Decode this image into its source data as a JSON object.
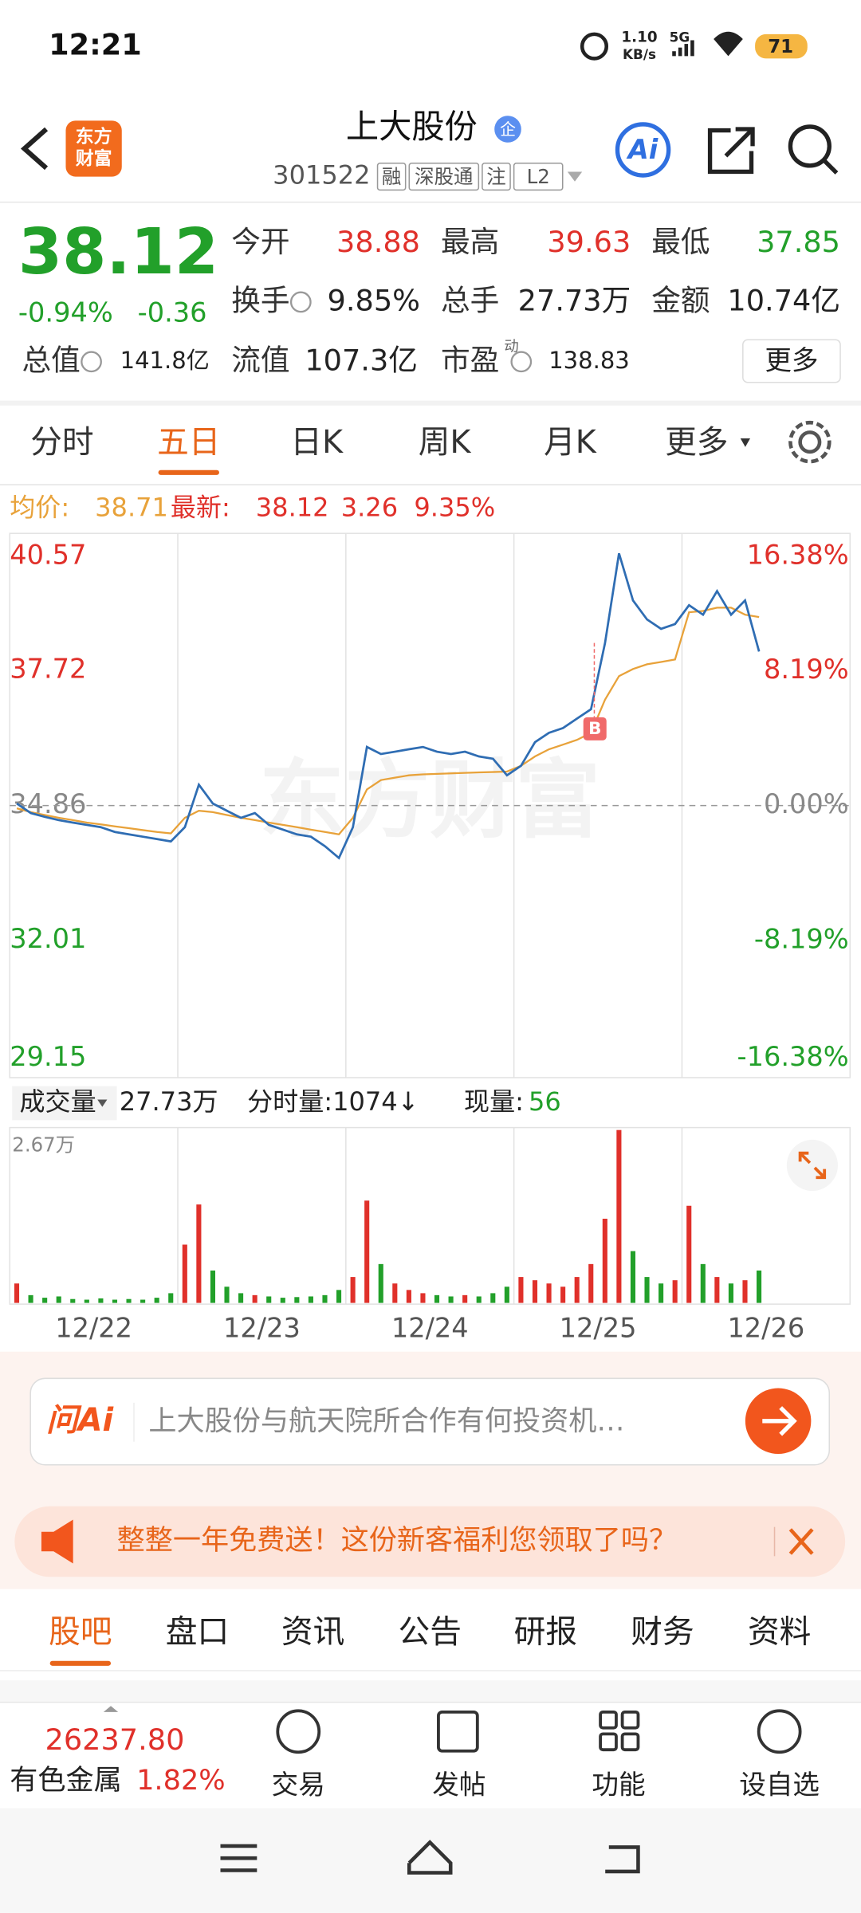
{
  "status_bar": {
    "time": "12:21",
    "speed": "1.10",
    "speed_unit": "KB/s",
    "network": "5G",
    "battery": "71"
  },
  "header": {
    "logo": [
      "东方",
      "财富"
    ],
    "title": "上大股份",
    "badge": "企",
    "code": "301522",
    "tags": [
      "融",
      "深股通",
      "注",
      "L2"
    ],
    "ai": "Ai"
  },
  "quote": {
    "price": "38.12",
    "change_pct": "-0.94%",
    "change": "-0.36",
    "stats": [
      {
        "label": "今开",
        "value": "38.88",
        "color": "#e0302a"
      },
      {
        "label": "最高",
        "value": "39.63",
        "color": "#e0302a"
      },
      {
        "label": "最低",
        "value": "37.85",
        "color": "#22a02a"
      },
      {
        "label": "换手",
        "value": "9.85%",
        "info": true
      },
      {
        "label": "总手",
        "value": "27.73万"
      },
      {
        "label": "金额",
        "value": "10.74亿"
      },
      {
        "label": "总值",
        "value": "141.8亿",
        "info": true
      },
      {
        "label": "流值",
        "value": "107.3亿"
      },
      {
        "label": "市盈",
        "sup": "动",
        "value": "138.83",
        "info": true
      }
    ],
    "more": "更多"
  },
  "tabs": {
    "items": [
      "分时",
      "五日",
      "日K",
      "周K",
      "月K",
      "更多"
    ],
    "active": 1
  },
  "price_chart": {
    "type": "line",
    "legend": {
      "avg_label": "均价:",
      "avg": "38.71",
      "latest_label": "最新:",
      "latest": "38.12",
      "change": "3.26",
      "change_pct": "9.35%"
    },
    "watermark": "东方财富",
    "trade_marker": "B",
    "days": [
      "12/22",
      "12/23",
      "12/24",
      "12/25",
      "12/26"
    ],
    "ylim": [
      29.15,
      40.57
    ],
    "yticks": [
      29.15,
      32.01,
      34.86,
      37.72,
      40.57
    ],
    "y2lim": [
      -16.38,
      16.38
    ],
    "y2ticks": [
      {
        "value": -16.38,
        "label": "-16.38%"
      },
      {
        "value": -8.19,
        "label": "-8.19%"
      },
      {
        "value": 0,
        "label": "0.00%"
      },
      {
        "value": 8.19,
        "label": "8.19%"
      },
      {
        "value": 16.38,
        "label": "16.38%"
      }
    ],
    "series": [
      {
        "name": "最新:",
        "color": "#2f6db3",
        "values": [
          34.9,
          34.7,
          34.62,
          34.55,
          34.5,
          34.45,
          34.4,
          34.3,
          34.25,
          34.2,
          34.15,
          34.1,
          34.4,
          35.3,
          34.9,
          34.75,
          34.6,
          34.7,
          34.45,
          34.35,
          34.25,
          34.2,
          34.0,
          33.75,
          34.4,
          36.1,
          35.95,
          36.0,
          36.05,
          36.1,
          36.0,
          35.95,
          36.0,
          35.9,
          35.85,
          35.5,
          35.7,
          36.2,
          36.4,
          36.5,
          36.7,
          36.9,
          38.3,
          40.2,
          39.2,
          38.8,
          38.6,
          38.7,
          39.1,
          38.9,
          39.4,
          38.9,
          39.2,
          38.12,
          null,
          null,
          null,
          null,
          null,
          null
        ]
      },
      {
        "name": "均价:",
        "color": "#e8a23a",
        "values": [
          34.8,
          34.72,
          34.66,
          34.6,
          34.55,
          34.5,
          34.46,
          34.42,
          34.38,
          34.34,
          34.3,
          34.27,
          34.6,
          34.75,
          34.72,
          34.66,
          34.6,
          34.55,
          34.5,
          34.45,
          34.4,
          34.35,
          34.3,
          34.25,
          34.6,
          35.2,
          35.4,
          35.45,
          35.5,
          35.52,
          35.53,
          35.54,
          35.55,
          35.56,
          35.57,
          35.58,
          35.7,
          35.9,
          36.05,
          36.15,
          36.25,
          36.4,
          37.1,
          37.6,
          37.75,
          37.85,
          37.9,
          37.95,
          38.95,
          38.98,
          39.05,
          39.05,
          38.9,
          38.85,
          null,
          null,
          null,
          null,
          null,
          null
        ]
      }
    ]
  },
  "volume_chart": {
    "type": "bar",
    "label": "成交量",
    "total": "27.73万",
    "interval": "分时量:1074↓",
    "current_label": "现量:",
    "current": "56",
    "ylim": [
      0,
      2.67
    ],
    "yticks": [
      {
        "value": 2.67,
        "label": "2.67万"
      }
    ],
    "up_color": "#e0302a",
    "down_color": "#22a02a",
    "values": [
      0.3,
      0.12,
      0.08,
      0.1,
      0.06,
      0.05,
      0.07,
      0.05,
      0.06,
      0.05,
      0.08,
      0.15,
      0.9,
      1.52,
      0.5,
      0.25,
      0.15,
      0.12,
      0.1,
      0.08,
      0.09,
      0.1,
      0.12,
      0.2,
      0.4,
      1.58,
      0.6,
      0.3,
      0.2,
      0.15,
      0.12,
      0.1,
      0.12,
      0.1,
      0.15,
      0.25,
      0.4,
      0.35,
      0.3,
      0.25,
      0.4,
      0.6,
      1.3,
      2.67,
      0.8,
      0.4,
      0.3,
      0.35,
      1.5,
      0.6,
      0.4,
      0.3,
      0.35,
      0.5,
      null,
      null,
      null,
      null,
      null,
      null
    ]
  },
  "ai_search": {
    "logo": "问Ai",
    "placeholder": "上大股份与航天院所合作有何投资机…"
  },
  "promo": {
    "text": "整整一年免费送！这份新客福利您领取了吗？"
  },
  "sections": {
    "items": [
      "股吧",
      "盘口",
      "资讯",
      "公告",
      "研报",
      "财务",
      "资料"
    ],
    "active": 0
  },
  "bottom_bar": {
    "index_value": "26237.80",
    "sector": "有色金属",
    "sector_change": "1.82%",
    "actions": [
      "交易",
      "发帖",
      "功能",
      "设自选"
    ]
  }
}
